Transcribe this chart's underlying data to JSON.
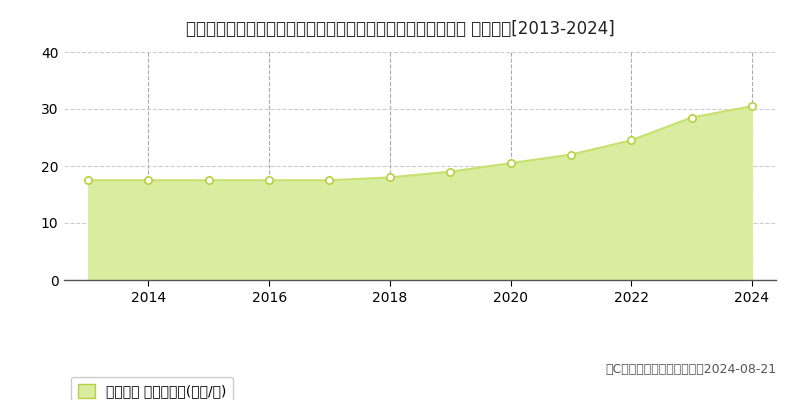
{
  "title": "北海道札幌市北区新琛似５条８丁目４８８番５０外　地価公示 地価推移[2013-2024]",
  "years": [
    2013,
    2014,
    2015,
    2016,
    2017,
    2018,
    2019,
    2020,
    2021,
    2022,
    2023,
    2024
  ],
  "values": [
    17.5,
    17.5,
    17.5,
    17.5,
    17.5,
    18.0,
    19.0,
    20.5,
    22.0,
    24.5,
    28.5,
    30.5
  ],
  "line_color": "#c8e06e",
  "fill_color": "#d9eda0",
  "marker_color": "#ffffff",
  "marker_edge_color": "#b8d040",
  "background_color": "#ffffff",
  "grid_color_h": "#cccccc",
  "grid_color_v": "#aaaaaa",
  "ylim": [
    0,
    40
  ],
  "yticks": [
    0,
    10,
    20,
    30,
    40
  ],
  "xticks": [
    2014,
    2016,
    2018,
    2020,
    2022,
    2024
  ],
  "xlim": [
    2012.6,
    2024.4
  ],
  "legend_label": "地価公示 平均坪単価(万円/坪)",
  "copyright_text": "（C）土地価格ドットコム　2024-08-21",
  "title_fontsize": 12,
  "axis_fontsize": 10,
  "legend_fontsize": 10,
  "copyright_fontsize": 9
}
